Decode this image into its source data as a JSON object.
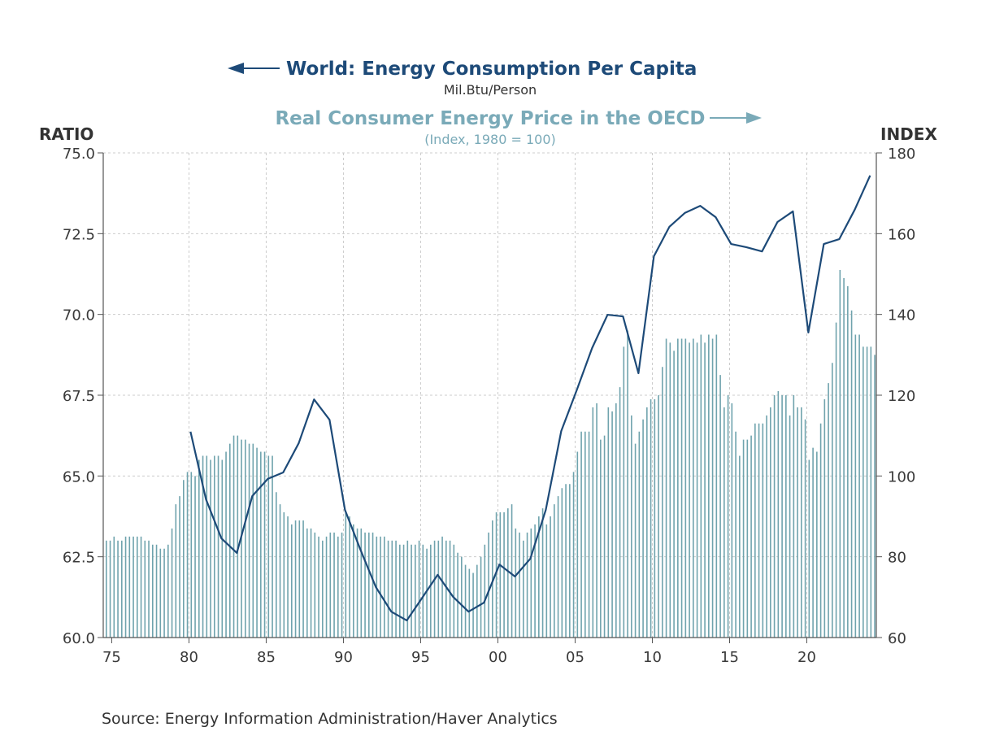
{
  "chart_data": {
    "type": "bar+line",
    "title_left": "World: Energy Consumption Per Capita",
    "subtitle_left": "Mil.Btu/Person",
    "title_right": "Real Consumer Energy Price in the OECD",
    "subtitle_right": "(Index, 1980 = 100)",
    "ylabel_left": "RATIO",
    "ylabel_right": "INDEX",
    "source": "Source:  Energy Information Administration/Haver Analytics",
    "xlim": [
      1974.45,
      2024.5
    ],
    "ylim_left": [
      60,
      75
    ],
    "ylim_right": [
      60,
      180
    ],
    "grid": true,
    "x_ticks": [
      {
        "v": 1975,
        "label": "75"
      },
      {
        "v": 1980,
        "label": "80"
      },
      {
        "v": 1985,
        "label": "85"
      },
      {
        "v": 1990,
        "label": "90"
      },
      {
        "v": 1995,
        "label": "95"
      },
      {
        "v": 2000,
        "label": "00"
      },
      {
        "v": 2005,
        "label": "05"
      },
      {
        "v": 2010,
        "label": "10"
      },
      {
        "v": 2015,
        "label": "15"
      },
      {
        "v": 2020,
        "label": "20"
      }
    ],
    "y_ticks_left": [
      {
        "v": 60,
        "label": "60.0"
      },
      {
        "v": 62.5,
        "label": "62.5"
      },
      {
        "v": 65,
        "label": "65.0"
      },
      {
        "v": 67.5,
        "label": "67.5"
      },
      {
        "v": 70,
        "label": "70.0"
      },
      {
        "v": 72.5,
        "label": "72.5"
      },
      {
        "v": 75,
        "label": "75.0"
      }
    ],
    "y_ticks_right": [
      {
        "v": 60,
        "label": "60"
      },
      {
        "v": 80,
        "label": "80"
      },
      {
        "v": 100,
        "label": "100"
      },
      {
        "v": 120,
        "label": "120"
      },
      {
        "v": 140,
        "label": "140"
      },
      {
        "v": 160,
        "label": "160"
      },
      {
        "v": 180,
        "label": "180"
      }
    ],
    "colors": {
      "line": "#1d4a78",
      "bars": "#6fa3ad",
      "right_title": "#7aaab8"
    },
    "line_series": {
      "name": "World: Energy Consumption Per Capita",
      "axis": "left",
      "x": [
        1980,
        1981,
        1982,
        1983,
        1984,
        1985,
        1986,
        1987,
        1988,
        1989,
        1990,
        1991,
        1992,
        1993,
        1994,
        1995,
        1996,
        1997,
        1998,
        1999,
        2000,
        2001,
        2002,
        2003,
        2004,
        2005,
        2006,
        2007,
        2008,
        2009,
        2010,
        2011,
        2012,
        2013,
        2014,
        2015,
        2016,
        2017,
        2018,
        2019,
        2020,
        2021,
        2022,
        2023,
        2024
      ],
      "values": [
        66.37,
        64.28,
        63.07,
        62.62,
        64.38,
        64.91,
        65.11,
        66.01,
        67.37,
        66.74,
        63.95,
        62.72,
        61.56,
        60.8,
        60.53,
        61.23,
        61.94,
        61.26,
        60.8,
        61.08,
        62.26,
        61.89,
        62.44,
        63.95,
        66.39,
        67.65,
        68.96,
        69.99,
        69.94,
        68.18,
        71.8,
        72.71,
        73.14,
        73.36,
        73.01,
        72.18,
        72.08,
        71.95,
        72.86,
        73.19,
        69.44,
        72.18,
        72.33,
        73.24,
        74.3
      ]
    },
    "bar_series": {
      "name": "Real Consumer Energy Price in the OECD",
      "axis": "right",
      "frequency": "quarterly",
      "start": 1975,
      "values": [
        84,
        84,
        85,
        84,
        84,
        85,
        85,
        85,
        85,
        85,
        84,
        84,
        83,
        83,
        82,
        82,
        83,
        87,
        93,
        95,
        99,
        101,
        101,
        100,
        104,
        105,
        105,
        104,
        105,
        105,
        104,
        106,
        108,
        110,
        110,
        109,
        109,
        108,
        108,
        107,
        106,
        106,
        105,
        105,
        96,
        93,
        91,
        90,
        88,
        89,
        89,
        89,
        87,
        87,
        86,
        85,
        84,
        85,
        86,
        86,
        85,
        86,
        91,
        90,
        88,
        87,
        87,
        86,
        86,
        86,
        85,
        85,
        85,
        84,
        84,
        84,
        83,
        83,
        84,
        83,
        83,
        84,
        83,
        82,
        83,
        84,
        84,
        85,
        84,
        84,
        83,
        81,
        80,
        78,
        77,
        76,
        78,
        80,
        83,
        86,
        89,
        91,
        91,
        91,
        92,
        93,
        87,
        86,
        84,
        86,
        87,
        88,
        90,
        92,
        88,
        90,
        93,
        95,
        97,
        98,
        98,
        101,
        106,
        111,
        111,
        111,
        117,
        118,
        109,
        110,
        117,
        116,
        118,
        122,
        132,
        136,
        115,
        108,
        111,
        114,
        117,
        119,
        119,
        120,
        127,
        134,
        133,
        131,
        134,
        134,
        134,
        133,
        134,
        133,
        135,
        133,
        135,
        134,
        135,
        125,
        117,
        120,
        118,
        111,
        105,
        109,
        109,
        110,
        113,
        113,
        113,
        115,
        117,
        120,
        121,
        120,
        120,
        115,
        120,
        117,
        117,
        114,
        104,
        107,
        106,
        113,
        119,
        123,
        128,
        138,
        151,
        149,
        147,
        141,
        135,
        135,
        132,
        132,
        132,
        130
      ]
    }
  }
}
